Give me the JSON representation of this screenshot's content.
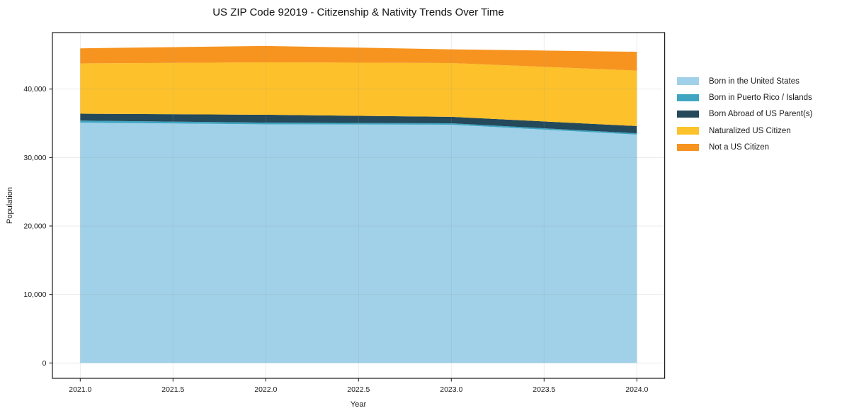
{
  "chart_data": {
    "type": "area",
    "stacked": true,
    "title": "US ZIP Code 92019 - Citizenship & Nativity Trends Over Time",
    "xlabel": "Year",
    "ylabel": "Population",
    "grid": true,
    "legend_position": "right-outside",
    "background": "#ffffff",
    "x": [
      2021,
      2022,
      2023,
      2024
    ],
    "series": [
      {
        "name": "Born in the United States",
        "color": "#a0d1e8",
        "values": [
          35100,
          34850,
          34800,
          33350
        ]
      },
      {
        "name": "Born in Puerto Rico / Islands",
        "color": "#3fa5c2",
        "values": [
          300,
          250,
          200,
          200
        ]
      },
      {
        "name": "Born Abroad of US Parent(s)",
        "color": "#24495b",
        "values": [
          1000,
          1150,
          950,
          1050
        ]
      },
      {
        "name": "Naturalized US Citizen",
        "color": "#fdc12b",
        "values": [
          7350,
          7650,
          7850,
          8100
        ]
      },
      {
        "name": "Not a US Citizen",
        "color": "#f79420",
        "values": [
          2200,
          2400,
          2000,
          2750
        ]
      }
    ],
    "totals": [
      45950,
      46300,
      45800,
      45450
    ],
    "xticks": [
      2021.0,
      2021.5,
      2022.0,
      2022.5,
      2023.0,
      2023.5,
      2024.0
    ],
    "xtick_labels": [
      "2021.0",
      "2021.5",
      "2022.0",
      "2022.5",
      "2023.0",
      "2023.5",
      "2024.0"
    ],
    "yticks": [
      0,
      10000,
      20000,
      30000,
      40000
    ],
    "ytick_labels": [
      "0",
      "10,000",
      "20,000",
      "30,000",
      "40,000"
    ],
    "xlim": [
      2020.85,
      2024.15
    ],
    "ylim": [
      -2245,
      48250
    ],
    "axis_color": "#1a1a1a",
    "gridline_color": "#999999"
  }
}
